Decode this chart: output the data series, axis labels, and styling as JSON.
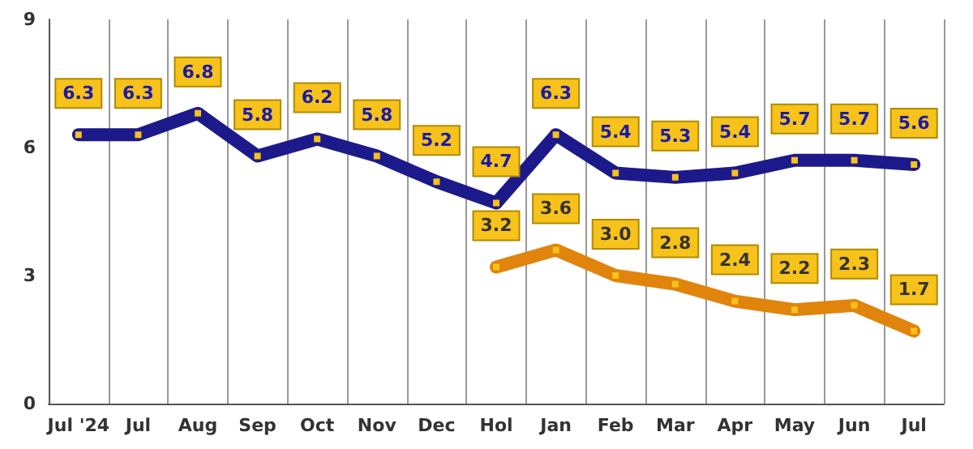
{
  "chart_data": {
    "type": "line",
    "categories": [
      "Jul '24",
      "Jul",
      "Aug",
      "Sep",
      "Oct",
      "Nov",
      "Dec",
      "Hol",
      "Jan",
      "Feb",
      "Mar",
      "Apr",
      "May",
      "Jun",
      "Jul"
    ],
    "series": [
      {
        "color": "#1c1a8a",
        "values": [
          6.3,
          6.3,
          6.8,
          5.8,
          6.2,
          5.8,
          5.2,
          4.7,
          6.3,
          5.4,
          5.3,
          5.4,
          5.7,
          5.7,
          5.6
        ],
        "value_labels": [
          "6.3",
          "6.3",
          "6.8",
          "5.8",
          "6.2",
          "5.8",
          "5.2",
          "4.7",
          "6.3",
          "5.4",
          "5.3",
          "5.4",
          "5.7",
          "5.7",
          "5.6"
        ]
      },
      {
        "color": "#e0840c",
        "values": [
          null,
          null,
          null,
          null,
          null,
          null,
          null,
          3.2,
          3.6,
          3.0,
          2.8,
          2.4,
          2.2,
          2.3,
          1.7
        ],
        "value_labels": [
          null,
          null,
          null,
          null,
          null,
          null,
          null,
          "3.2",
          "3.6",
          "3.0",
          "2.8",
          "2.4",
          "2.2",
          "2.3",
          "1.7"
        ]
      }
    ],
    "ylim": [
      0,
      9
    ],
    "yticks": [
      0,
      3,
      6,
      9
    ],
    "grid": "x",
    "marker": "square",
    "line_style": "solid"
  }
}
